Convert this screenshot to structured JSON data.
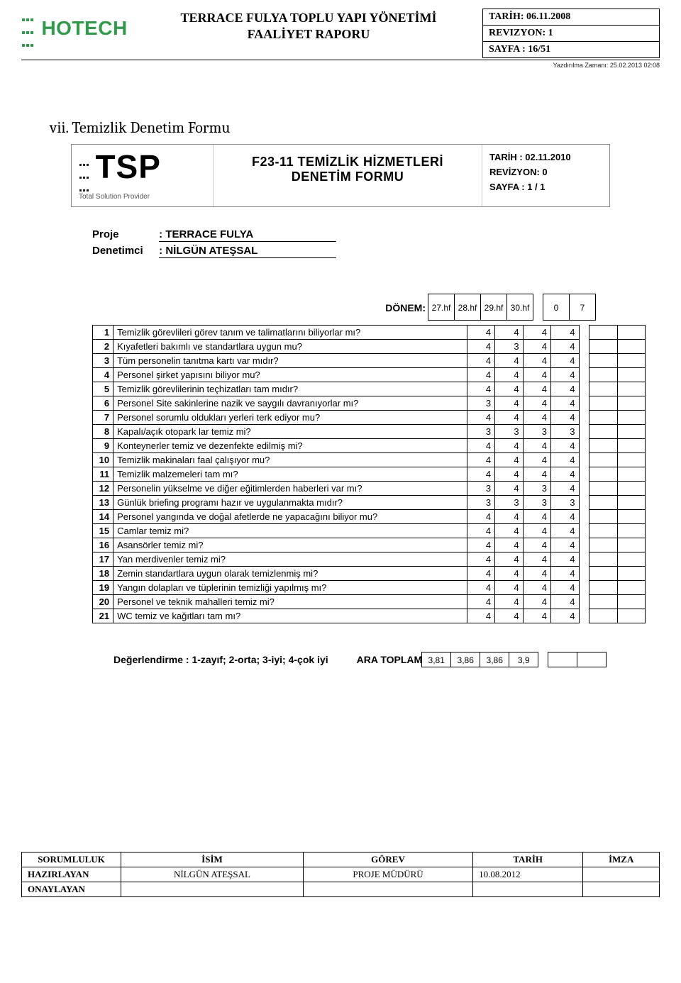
{
  "header": {
    "logo_text": "HOTECH",
    "title_line1": "TERRACE FULYA TOPLU YAPI YÖNETİMİ",
    "title_line2": "FAALİYET RAPORU",
    "meta": {
      "tarih": "TARİH: 06.11.2008",
      "revizyon": "REVIZYON:  1",
      "sayfa": "SAYFA : 16/51"
    },
    "print_time": "Yazdırılma Zamanı: 25.02.2013 02:08"
  },
  "section_title": "vii.   Temizlik Denetim Formu",
  "form_header": {
    "tsp_big": "TSP",
    "tsp_sub": "Total Solution Provider",
    "title_line1": "F23-11 TEMİZLİK HİZMETLERİ",
    "title_line2": "DENETİM FORMU",
    "meta": {
      "tarih": "TARİH : 02.11.2010",
      "revizyon": "REVİZYON: 0",
      "sayfa": "SAYFA : 1 / 1"
    }
  },
  "project": {
    "proje_label": "Proje",
    "proje_value": ": TERRACE FULYA",
    "denetimci_label": "Denetimci",
    "denetimci_value": ": NİLGÜN ATEŞSAL"
  },
  "donem": {
    "label": "DÖNEM:",
    "weeks": [
      "27.hf",
      "28.hf",
      "29.hf",
      "30.hf"
    ],
    "extra": [
      "0",
      "7"
    ]
  },
  "rows": [
    {
      "n": "1",
      "q": "Temizlik görevlileri görev tanım ve talimatlarını biliyorlar mı?",
      "v": [
        "4",
        "4",
        "4",
        "4"
      ]
    },
    {
      "n": "2",
      "q": "Kıyafetleri bakımlı ve standartlara uygun mu?",
      "v": [
        "4",
        "3",
        "4",
        "4"
      ]
    },
    {
      "n": "3",
      "q": "Tüm personelin tanıtma kartı var mıdır?",
      "v": [
        "4",
        "4",
        "4",
        "4"
      ]
    },
    {
      "n": "4",
      "q": "Personel şirket yapısını biliyor mu?",
      "v": [
        "4",
        "4",
        "4",
        "4"
      ]
    },
    {
      "n": "5",
      "q": "Temizlik görevlilerinin teçhizatları tam mıdır?",
      "v": [
        "4",
        "4",
        "4",
        "4"
      ]
    },
    {
      "n": "6",
      "q": "Personel Site sakinlerine nazik ve saygılı davranıyorlar mı?",
      "v": [
        "3",
        "4",
        "4",
        "4"
      ]
    },
    {
      "n": "7",
      "q": "Personel sorumlu oldukları yerleri terk ediyor mu?",
      "v": [
        "4",
        "4",
        "4",
        "4"
      ]
    },
    {
      "n": "8",
      "q": "Kapalı/açık otopark lar temiz mi?",
      "v": [
        "3",
        "3",
        "3",
        "3"
      ]
    },
    {
      "n": "9",
      "q": "Konteynerler temiz ve dezenfekte edilmiş mi?",
      "v": [
        "4",
        "4",
        "4",
        "4"
      ]
    },
    {
      "n": "10",
      "q": "Temizlik makinaları faal çalışıyor mu?",
      "v": [
        "4",
        "4",
        "4",
        "4"
      ]
    },
    {
      "n": "11",
      "q": "Temizlik malzemeleri tam mı?",
      "v": [
        "4",
        "4",
        "4",
        "4"
      ]
    },
    {
      "n": "12",
      "q": "Personelin yükselme ve diğer eğitimlerden haberleri var mı?",
      "v": [
        "3",
        "4",
        "3",
        "4"
      ]
    },
    {
      "n": "13",
      "q": "Günlük briefing programı hazır ve uygulanmakta mıdır?",
      "v": [
        "3",
        "3",
        "3",
        "3"
      ]
    },
    {
      "n": "14",
      "q": "Personel yangında ve doğal afetlerde ne yapacağını biliyor mu?",
      "v": [
        "4",
        "4",
        "4",
        "4"
      ]
    },
    {
      "n": "15",
      "q": "Camlar temiz mi?",
      "v": [
        "4",
        "4",
        "4",
        "4"
      ]
    },
    {
      "n": "16",
      "q": "Asansörler temiz mi?",
      "v": [
        "4",
        "4",
        "4",
        "4"
      ]
    },
    {
      "n": "17",
      "q": "Yan merdivenler temiz mi?",
      "v": [
        "4",
        "4",
        "4",
        "4"
      ]
    },
    {
      "n": "18",
      "q": "Zemin standartlara uygun olarak temizlenmiş mi?",
      "v": [
        "4",
        "4",
        "4",
        "4"
      ]
    },
    {
      "n": "19",
      "q": "Yangın dolapları ve tüplerinin temizliği yapılmış mı?",
      "v": [
        "4",
        "4",
        "4",
        "4"
      ]
    },
    {
      "n": "20",
      "q": "Personel ve teknik  mahalleri temiz mi?",
      "v": [
        "4",
        "4",
        "4",
        "4"
      ]
    },
    {
      "n": "21",
      "q": "WC temiz ve kağıtları tam mı?",
      "v": [
        "4",
        "4",
        "4",
        "4"
      ]
    }
  ],
  "evaluation": {
    "label": "Değerlendirme : 1-zayıf; 2-orta; 3-iyi; 4-çok iyi",
    "subtotal_label": "ARA TOPLAM",
    "values": [
      "3,81",
      "3,86",
      "3,86",
      "3,9"
    ]
  },
  "footer": {
    "headers": [
      "SORUMLULUK",
      "İSİM",
      "GÖREV",
      "TARİH",
      "İMZA"
    ],
    "rows": [
      {
        "role": "HAZIRLAYAN",
        "isim": "NİLGÜN ATEŞSAL",
        "gorev": "PROJE MÜDÜRÜ",
        "tarih": "10.08.2012",
        "imza": ""
      },
      {
        "role": "ONAYLAYAN",
        "isim": "",
        "gorev": "",
        "tarih": "",
        "imza": ""
      }
    ]
  }
}
